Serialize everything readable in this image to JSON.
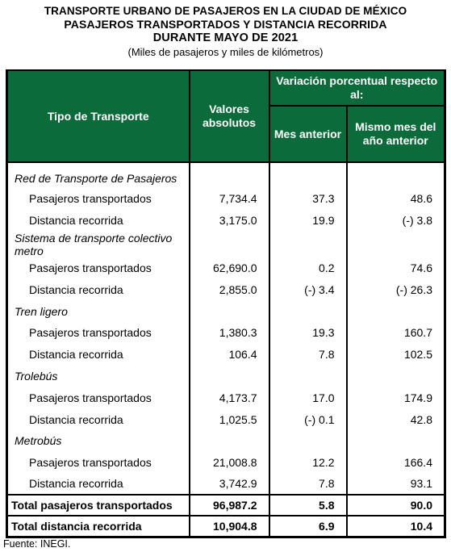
{
  "title": {
    "line1": "TRANSPORTE URBANO DE PASAJEROS EN LA CIUDAD DE MÉXICO",
    "line2": "PASAJEROS TRANSPORTADOS Y DISTANCIA RECORRIDA",
    "line3": "DURANTE MAYO DE 2021",
    "subtitle": "(Miles de pasajeros y miles de kilómetros)"
  },
  "table": {
    "headers": {
      "tipo": "Tipo de Transporte",
      "valores": "Valores absolutos",
      "variacion": "Variación porcentual respecto al:",
      "mes_anterior": "Mes anterior",
      "mismo_mes": "Mismo mes del año anterior"
    },
    "rows": [
      {
        "kind": "section",
        "label": "Red de Transporte de Pasajeros",
        "valor": "",
        "mes": "",
        "anio": ""
      },
      {
        "kind": "item",
        "label": "Pasajeros transportados",
        "valor": "7,734.4",
        "mes": "37.3",
        "anio": "48.6"
      },
      {
        "kind": "item",
        "label": "Distancia recorrida",
        "valor": "3,175.0",
        "mes": "19.9",
        "anio": "(-) 3.8"
      },
      {
        "kind": "section",
        "label": "Sistema de transporte colectivo metro",
        "valor": "",
        "mes": "",
        "anio": ""
      },
      {
        "kind": "item",
        "label": "Pasajeros transportados",
        "valor": "62,690.0",
        "mes": "0.2",
        "anio": "74.6"
      },
      {
        "kind": "item",
        "label": "Distancia recorrida",
        "valor": "2,855.0",
        "mes": "(-) 3.4",
        "anio": "(-) 26.3"
      },
      {
        "kind": "section",
        "label": "Tren ligero",
        "valor": "",
        "mes": "",
        "anio": ""
      },
      {
        "kind": "item",
        "label": "Pasajeros transportados",
        "valor": "1,380.3",
        "mes": "19.3",
        "anio": "160.7"
      },
      {
        "kind": "item",
        "label": "Distancia recorrida",
        "valor": "106.4",
        "mes": "7.8",
        "anio": "102.5"
      },
      {
        "kind": "section",
        "label": "Trolebús",
        "valor": "",
        "mes": "",
        "anio": ""
      },
      {
        "kind": "item",
        "label": "Pasajeros transportados",
        "valor": "4,173.7",
        "mes": "17.0",
        "anio": "174.9"
      },
      {
        "kind": "item",
        "label": "Distancia recorrida",
        "valor": "1,025.5",
        "mes": "(-) 0.1",
        "anio": "42.8"
      },
      {
        "kind": "section",
        "label": "Metrobús",
        "valor": "",
        "mes": "",
        "anio": ""
      },
      {
        "kind": "item",
        "label": "Pasajeros transportados",
        "valor": "21,008.8",
        "mes": "12.2",
        "anio": "166.4"
      },
      {
        "kind": "item",
        "label": "Distancia recorrida",
        "valor": "3,742.9",
        "mes": "7.8",
        "anio": "93.1"
      }
    ],
    "totals": [
      {
        "label": "Total pasajeros transportados",
        "valor": "96,987.2",
        "mes": "5.8",
        "anio": "90.0"
      },
      {
        "label": "Total distancia recorrida",
        "valor": "10,904.8",
        "mes": "6.9",
        "anio": "10.4"
      }
    ]
  },
  "source": "Fuente: INEGI.",
  "colors": {
    "header_bg": "#0c6b3a",
    "header_text": "#ffffff"
  }
}
